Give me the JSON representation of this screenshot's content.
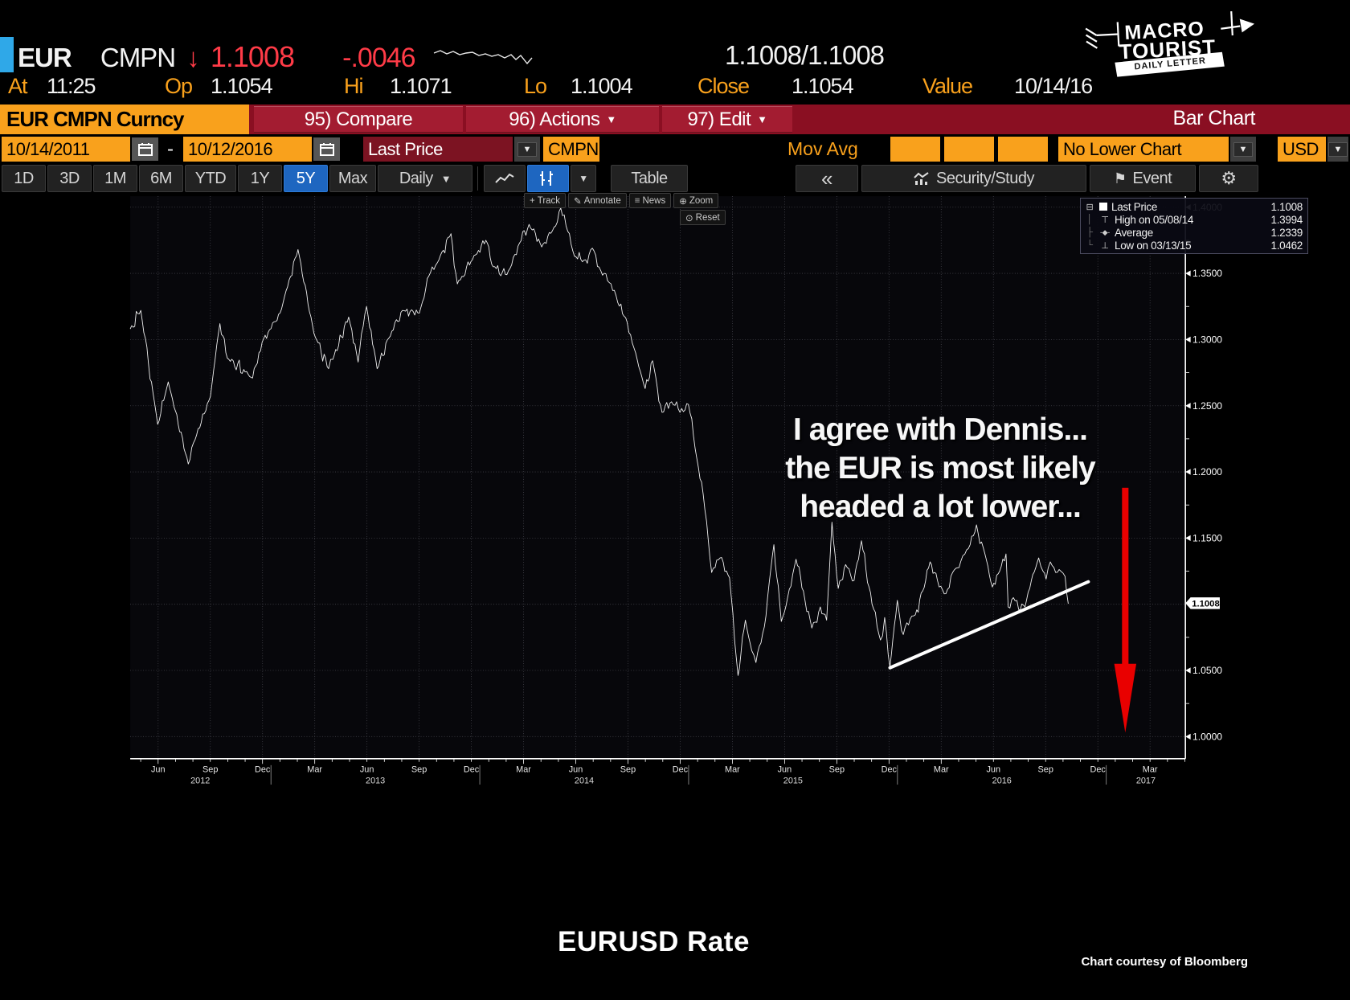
{
  "header": {
    "ticker": "EUR",
    "ticker_type": "CMPN",
    "direction_arrow": "↓",
    "last_price": "1.1008",
    "change": "-.0046",
    "bid_ask": "1.1008/1.1008",
    "stats": [
      {
        "label": "At",
        "value": "11:25"
      },
      {
        "label": "Op",
        "value": "1.1054"
      },
      {
        "label": "Hi",
        "value": "1.1071"
      },
      {
        "label": "Lo",
        "value": "1.1004"
      },
      {
        "label": "Close",
        "value": "1.1054"
      },
      {
        "label": "Value",
        "value": "10/14/16"
      }
    ],
    "logo": {
      "line1": "MACRO",
      "line2": "TOURIST",
      "banner": "DAILY LETTER"
    }
  },
  "ribbon": {
    "security": "EUR CMPN Curncy",
    "compare": "95) Compare",
    "actions": "96) Actions",
    "edit": "97) Edit",
    "right_label": "Bar Chart"
  },
  "fields": {
    "date_from": "10/14/2011",
    "dash": "-",
    "date_to": "10/12/2016",
    "price_type": "Last Price",
    "source": "CMPN",
    "mov_avg_label": "Mov Avg",
    "lower_chart": "No Lower Chart",
    "currency": "USD"
  },
  "tabs": {
    "ranges": [
      "1D",
      "3D",
      "1M",
      "6M",
      "YTD",
      "1Y",
      "5Y",
      "Max"
    ],
    "active": "5Y",
    "period": "Daily",
    "table": "Table",
    "collapse": "«",
    "security_study": "Security/Study",
    "event": "Event"
  },
  "chart_tools": {
    "track": "Track",
    "annotate": "Annotate",
    "news": "News",
    "zoom": "Zoom",
    "reset": "Reset"
  },
  "legend": {
    "items": [
      {
        "label": "Last Price",
        "value": "1.1008"
      },
      {
        "label": "High on 05/08/14",
        "value": "1.3994"
      },
      {
        "label": "Average",
        "value": "1.2339"
      },
      {
        "label": "Low on 03/13/15",
        "value": "1.0462"
      }
    ]
  },
  "annotation": {
    "lines": [
      "I agree with Dennis...",
      "the EUR is most likely",
      "headed a lot lower..."
    ]
  },
  "footer": {
    "title": "EURUSD Rate",
    "credit": "Chart courtesy of Bloomberg"
  },
  "colors": {
    "accent_orange": "#f9a11c",
    "ribbon_red": "#8a0f22",
    "price_red": "#ff3b47",
    "active_blue": "#1e66c0",
    "arrow_red": "#e90000",
    "line_white": "#f2f2f2"
  },
  "chart_data": {
    "type": "line",
    "title": "EURUSD Rate",
    "ylabel": "",
    "xlabel": "",
    "ylim": [
      1.0,
      1.4
    ],
    "grid": true,
    "legend_position": "top-right",
    "ytick_labels": [
      "1.4000",
      "1.3500",
      "1.3000",
      "1.2500",
      "1.2000",
      "1.1500",
      "1.0500",
      "1.0000"
    ],
    "ytick_values": [
      1.4,
      1.35,
      1.3,
      1.25,
      1.2,
      1.15,
      1.05,
      1.0
    ],
    "last_price_value": 1.1008,
    "last_price_label": "1.1008",
    "x_month_labels": [
      "Jun",
      "Sep",
      "Dec",
      "Mar",
      "Jun",
      "Sep",
      "Dec",
      "Mar",
      "Jun",
      "Sep",
      "Dec",
      "Mar",
      "Jun",
      "Sep",
      "Dec",
      "Mar",
      "Jun",
      "Sep",
      "Dec",
      "Mar"
    ],
    "x_year_labels": [
      "2012",
      "2013",
      "2014",
      "2015",
      "2016",
      "2017"
    ],
    "series_name": "EURUSD Last Price (daily)",
    "points": [
      [
        0.0,
        1.308
      ],
      [
        0.01,
        1.322
      ],
      [
        0.026,
        1.236
      ],
      [
        0.036,
        1.268
      ],
      [
        0.055,
        1.206
      ],
      [
        0.06,
        1.222
      ],
      [
        0.076,
        1.257
      ],
      [
        0.085,
        1.312
      ],
      [
        0.092,
        1.286
      ],
      [
        0.116,
        1.271
      ],
      [
        0.125,
        1.298
      ],
      [
        0.142,
        1.32
      ],
      [
        0.159,
        1.368
      ],
      [
        0.174,
        1.305
      ],
      [
        0.188,
        1.278
      ],
      [
        0.192,
        1.285
      ],
      [
        0.207,
        1.317
      ],
      [
        0.216,
        1.283
      ],
      [
        0.224,
        1.325
      ],
      [
        0.234,
        1.278
      ],
      [
        0.245,
        1.301
      ],
      [
        0.258,
        1.322
      ],
      [
        0.274,
        1.32
      ],
      [
        0.283,
        1.348
      ],
      [
        0.291,
        1.358
      ],
      [
        0.304,
        1.38
      ],
      [
        0.31,
        1.342
      ],
      [
        0.323,
        1.359
      ],
      [
        0.337,
        1.375
      ],
      [
        0.344,
        1.355
      ],
      [
        0.357,
        1.349
      ],
      [
        0.369,
        1.373
      ],
      [
        0.378,
        1.387
      ],
      [
        0.39,
        1.37
      ],
      [
        0.4,
        1.382
      ],
      [
        0.408,
        1.3994
      ],
      [
        0.413,
        1.386
      ],
      [
        0.421,
        1.363
      ],
      [
        0.43,
        1.36
      ],
      [
        0.438,
        1.369
      ],
      [
        0.446,
        1.352
      ],
      [
        0.454,
        1.343
      ],
      [
        0.462,
        1.328
      ],
      [
        0.471,
        1.313
      ],
      [
        0.479,
        1.29
      ],
      [
        0.488,
        1.263
      ],
      [
        0.495,
        1.284
      ],
      [
        0.504,
        1.245
      ],
      [
        0.513,
        1.253
      ],
      [
        0.521,
        1.245
      ],
      [
        0.529,
        1.251
      ],
      [
        0.537,
        1.21
      ],
      [
        0.543,
        1.183
      ],
      [
        0.551,
        1.124
      ],
      [
        0.559,
        1.135
      ],
      [
        0.568,
        1.12
      ],
      [
        0.576,
        1.0462
      ],
      [
        0.583,
        1.088
      ],
      [
        0.589,
        1.065
      ],
      [
        0.593,
        1.056
      ],
      [
        0.601,
        1.083
      ],
      [
        0.61,
        1.145
      ],
      [
        0.617,
        1.087
      ],
      [
        0.623,
        1.105
      ],
      [
        0.631,
        1.134
      ],
      [
        0.638,
        1.11
      ],
      [
        0.646,
        1.082
      ],
      [
        0.654,
        1.098
      ],
      [
        0.66,
        1.088
      ],
      [
        0.665,
        1.162
      ],
      [
        0.671,
        1.112
      ],
      [
        0.678,
        1.13
      ],
      [
        0.686,
        1.118
      ],
      [
        0.693,
        1.148
      ],
      [
        0.703,
        1.1
      ],
      [
        0.711,
        1.073
      ],
      [
        0.715,
        1.09
      ],
      [
        0.72,
        1.0524
      ],
      [
        0.727,
        1.103
      ],
      [
        0.731,
        1.08
      ],
      [
        0.736,
        1.086
      ],
      [
        0.744,
        1.092
      ],
      [
        0.751,
        1.11
      ],
      [
        0.758,
        1.132
      ],
      [
        0.765,
        1.118
      ],
      [
        0.773,
        1.108
      ],
      [
        0.781,
        1.126
      ],
      [
        0.787,
        1.132
      ],
      [
        0.791,
        1.138
      ],
      [
        0.796,
        1.145
      ],
      [
        0.802,
        1.16
      ],
      [
        0.81,
        1.138
      ],
      [
        0.817,
        1.113
      ],
      [
        0.824,
        1.125
      ],
      [
        0.83,
        1.138
      ],
      [
        0.832,
        1.098
      ],
      [
        0.837,
        1.105
      ],
      [
        0.842,
        1.096
      ],
      [
        0.848,
        1.098
      ],
      [
        0.854,
        1.118
      ],
      [
        0.861,
        1.135
      ],
      [
        0.865,
        1.125
      ],
      [
        0.868,
        1.119
      ],
      [
        0.872,
        1.132
      ],
      [
        0.877,
        1.124
      ],
      [
        0.882,
        1.125
      ],
      [
        0.886,
        1.121
      ],
      [
        0.889,
        1.1004
      ]
    ],
    "trendline": {
      "t1": 0.72,
      "p1": 1.052,
      "t2": 0.908,
      "p2": 1.117
    },
    "red_arrow": {
      "t": 0.943,
      "p_top": 1.188,
      "p_bottom": 1.003
    }
  }
}
